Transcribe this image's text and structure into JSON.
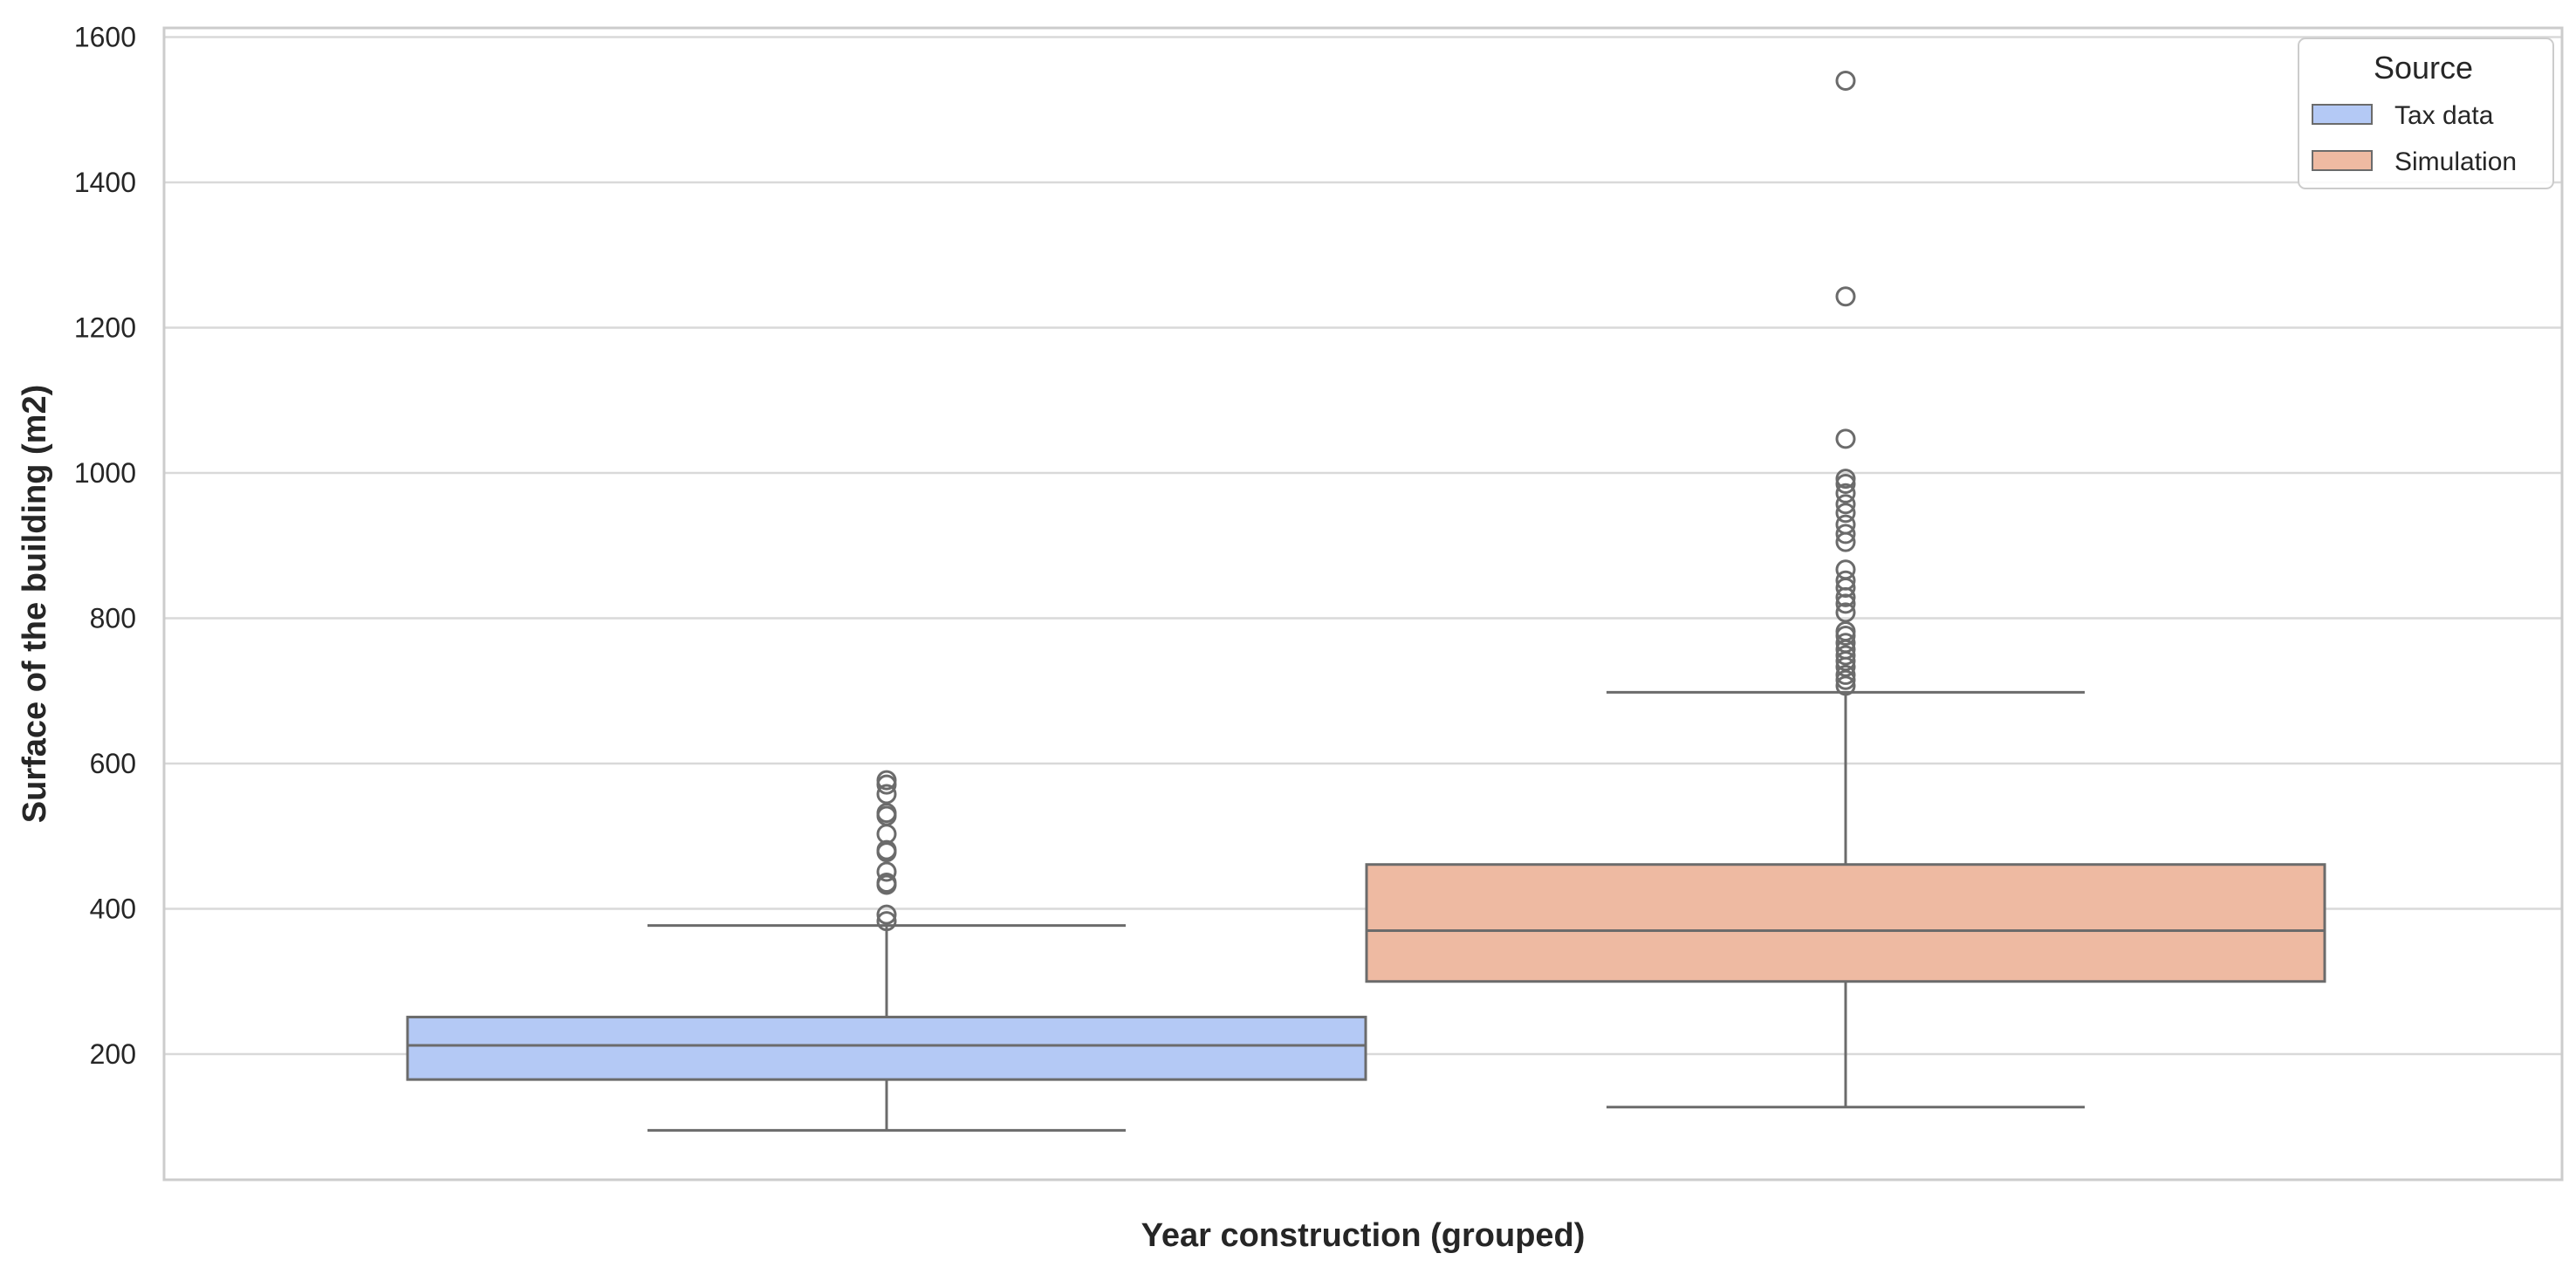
{
  "chart_data": {
    "type": "box",
    "title": "",
    "xlabel": "Year construction (grouped)",
    "ylabel": "Surface of the building (m2)",
    "ylim": [
      30,
      1610
    ],
    "yticks": [
      200,
      400,
      600,
      800,
      1000,
      1200,
      1400,
      1600
    ],
    "grid": true,
    "legend": {
      "title": "Source",
      "placement": "top-right",
      "entries": [
        "Tax data",
        "Simulation"
      ]
    },
    "series": [
      {
        "name": "Tax data",
        "color": "#b4c9f5",
        "stroke": "#6b6b6b",
        "whisker_low": 95,
        "q1": 165,
        "median": 212,
        "q3": 251,
        "whisker_high": 377,
        "outliers": [
          383,
          392,
          433,
          436,
          451,
          478,
          481,
          503,
          528,
          532,
          558,
          571,
          577
        ]
      },
      {
        "name": "Simulation",
        "color": "#eebaa2",
        "stroke": "#6b6b6b",
        "whisker_low": 127,
        "q1": 300,
        "median": 370,
        "q3": 461,
        "whisker_high": 698,
        "outliers": [
          707,
          715,
          722,
          733,
          741,
          749,
          757,
          766,
          776,
          782,
          808,
          820,
          829,
          842,
          852,
          867,
          905,
          916,
          929,
          945,
          957,
          972,
          985,
          992,
          1047,
          1243,
          1540
        ]
      }
    ]
  }
}
